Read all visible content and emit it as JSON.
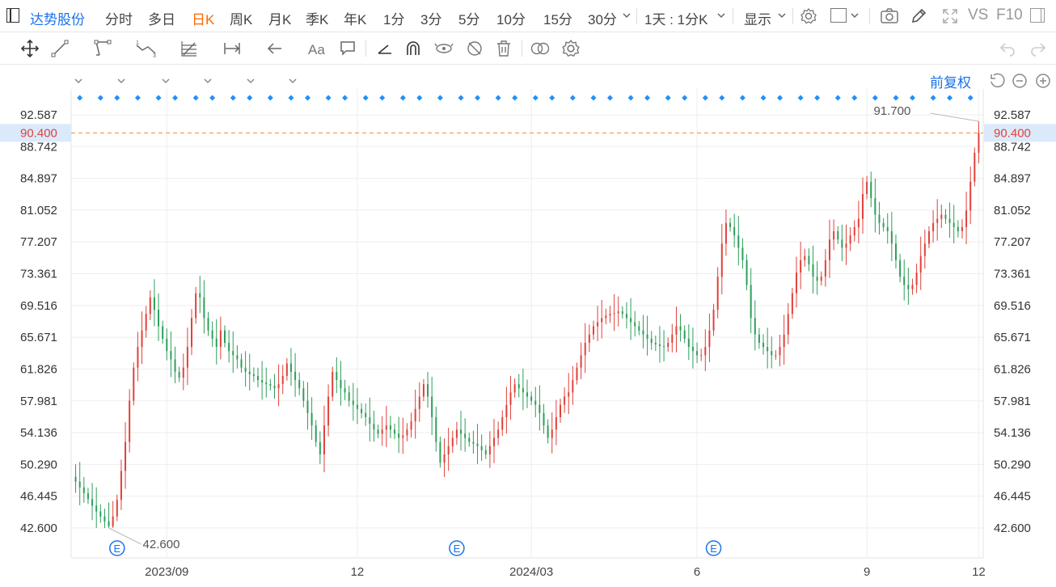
{
  "topbar": {
    "stock_name": "达势股份",
    "tabs": [
      "分时",
      "多日",
      "日K",
      "周K",
      "月K",
      "季K",
      "年K",
      "1分",
      "3分",
      "5分",
      "10分",
      "15分",
      "30分"
    ],
    "active_tab": "日K",
    "period_select": "1天 : 1分K",
    "display_label": "显示",
    "vs_label": "VS",
    "f10_label": "F10"
  },
  "toolbar": {
    "icons": [
      "move-icon",
      "line-tool-icon",
      "channel-tool-icon",
      "wave-tool-icon",
      "fib-tool-icon",
      "measure-tool-icon",
      "arrow-tool-icon",
      "text-tool-icon",
      "comment-tool-icon",
      "angle-tool-icon",
      "magnet-icon",
      "lock-icon",
      "hide-icon",
      "trash-icon",
      "compare-icon",
      "settings-icon"
    ],
    "undo": "undo-icon",
    "redo": "redo-icon"
  },
  "chart_header": {
    "adjust_label": "前复权"
  },
  "colors": {
    "up": "#e0413a",
    "down": "#2e9e5b",
    "accent": "#1a73e8",
    "current_line": "#f08a3c",
    "current_label": "#e0413a",
    "marker": "#1e90ff"
  },
  "chart_data": {
    "type": "candlestick",
    "y_ticks": [
      "92.587",
      "88.742",
      "84.897",
      "81.052",
      "77.207",
      "73.361",
      "69.516",
      "65.671",
      "61.826",
      "57.981",
      "54.136",
      "50.290",
      "46.445",
      "42.600"
    ],
    "ylim": [
      42.6,
      92.587
    ],
    "x_labels": [
      "2023/09",
      "12",
      "2024/03",
      "6",
      "9",
      "12"
    ],
    "current_price": "90.400",
    "max_label": "91.700",
    "min_label": "42.600",
    "event_marker_label": "E",
    "event_marker_count": 3,
    "dividend_marker_count": 48,
    "closes": [
      48.2,
      47.5,
      46.8,
      46.1,
      45.3,
      44.6,
      44.0,
      43.4,
      42.8,
      44.0,
      46.0,
      49.5,
      53.0,
      58.0,
      62.0,
      64.5,
      66.5,
      68.5,
      70.5,
      69.0,
      67.0,
      65.5,
      64.0,
      63.0,
      61.5,
      60.8,
      62.0,
      64.5,
      68.0,
      71.0,
      70.5,
      68.0,
      66.5,
      65.5,
      64.5,
      66.5,
      65.0,
      64.0,
      63.5,
      63.0,
      62.0,
      61.5,
      61.2,
      61.0,
      60.5,
      60.2,
      60.0,
      59.8,
      59.5,
      60.0,
      61.0,
      62.5,
      61.5,
      60.5,
      59.5,
      58.0,
      56.5,
      55.0,
      53.0,
      51.5,
      55.0,
      58.5,
      61.5,
      60.5,
      59.5,
      59.0,
      58.0,
      57.5,
      57.0,
      56.5,
      56.0,
      55.2,
      54.5,
      54.0,
      54.5,
      55.0,
      54.5,
      54.0,
      53.5,
      53.8,
      54.5,
      55.5,
      57.0,
      58.5,
      60.0,
      58.5,
      56.0,
      53.0,
      50.5,
      51.5,
      52.5,
      53.5,
      54.5,
      54.0,
      53.5,
      53.0,
      52.8,
      52.5,
      52.0,
      51.5,
      52.5,
      53.5,
      54.5,
      56.0,
      57.5,
      59.0,
      60.0,
      59.5,
      59.0,
      58.5,
      58.0,
      57.5,
      56.5,
      55.0,
      53.5,
      54.5,
      56.0,
      57.5,
      58.5,
      59.0,
      60.5,
      62.0,
      63.5,
      65.0,
      66.0,
      67.0,
      67.5,
      68.0,
      68.3,
      68.5,
      68.6,
      68.8,
      68.5,
      68.0,
      67.5,
      67.0,
      66.5,
      66.0,
      65.5,
      65.0,
      64.8,
      64.6,
      64.5,
      65.0,
      66.0,
      67.0,
      66.5,
      65.5,
      64.5,
      64.0,
      63.5,
      63.5,
      64.5,
      66.5,
      69.0,
      73.0,
      77.0,
      79.5,
      79.0,
      78.0,
      76.5,
      75.0,
      72.0,
      68.0,
      66.0,
      65.0,
      64.5,
      64.0,
      63.5,
      63.5,
      64.5,
      66.0,
      68.5,
      71.0,
      73.5,
      75.0,
      75.5,
      74.5,
      73.0,
      72.5,
      73.0,
      75.0,
      77.5,
      78.5,
      77.5,
      76.5,
      77.0,
      78.0,
      79.0,
      80.0,
      83.0,
      84.5,
      82.5,
      80.5,
      79.5,
      79.0,
      78.5,
      77.0,
      75.0,
      73.0,
      72.0,
      71.5,
      72.0,
      73.5,
      75.5,
      77.0,
      78.5,
      79.5,
      80.0,
      80.5,
      80.0,
      79.5,
      79.0,
      78.5,
      79.0,
      81.0,
      84.5,
      88.0,
      90.4
    ]
  }
}
